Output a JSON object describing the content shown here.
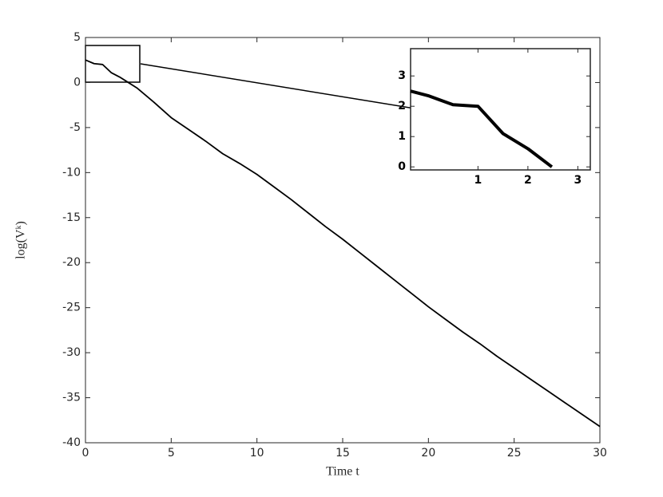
{
  "chart_data": [
    {
      "type": "line",
      "xlabel": "Time t",
      "ylabel": "log(Vᵏ)",
      "x": [
        0,
        0.5,
        1,
        1.5,
        2,
        2.5,
        3,
        4,
        5,
        6,
        7,
        8,
        9,
        10,
        11,
        12,
        13,
        14,
        15,
        16,
        17,
        18,
        19,
        20,
        21,
        22,
        23,
        24,
        25,
        26,
        27,
        28,
        29,
        30
      ],
      "series": [
        {
          "color": "#000000",
          "values": [
            2.5,
            2.1,
            2.0,
            1.1,
            0.6,
            0,
            -0.6,
            -2.2,
            -3.9,
            -5.2,
            -6.5,
            -7.9,
            -9.0,
            -10.2,
            -11.6,
            -13.0,
            -14.5,
            -16.0,
            -17.4,
            -18.9,
            -20.4,
            -21.9,
            -23.4,
            -24.9,
            -26.3,
            -27.7,
            -29.0,
            -30.4,
            -31.7,
            -33.0,
            -34.3,
            -35.6,
            -36.9,
            -38.2
          ]
        }
      ],
      "xlim": [
        0,
        30
      ],
      "xticks": [
        0,
        5,
        10,
        15,
        20,
        25,
        30
      ],
      "ylim": [
        -40,
        5
      ],
      "yticks": [
        -40,
        -35,
        -30,
        -25,
        -20,
        -15,
        -10,
        -5,
        0,
        5
      ]
    },
    {
      "type": "line",
      "x": [
        -0.35,
        0,
        0.5,
        1,
        1.5,
        2,
        2.48
      ],
      "series": [
        {
          "color": "#000000",
          "values": [
            2.5,
            2.35,
            2.05,
            2.0,
            1.1,
            0.6,
            0
          ]
        }
      ],
      "xlim": [
        -0.35,
        3.25
      ],
      "xticks": [
        1,
        2,
        3
      ],
      "ylim": [
        -0.1,
        3.9
      ],
      "yticks": [
        0,
        1,
        2,
        3
      ]
    }
  ]
}
